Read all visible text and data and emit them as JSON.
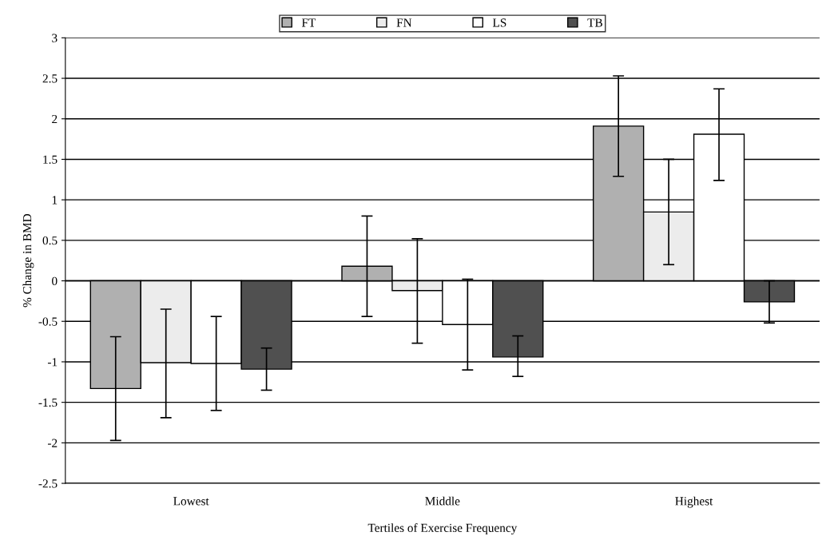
{
  "chart_data": {
    "type": "bar",
    "xlabel": "Tertiles of Exercise Frequency",
    "ylabel": "% Change in BMD",
    "categories": [
      "Lowest",
      "Middle",
      "Highest"
    ],
    "series": [
      {
        "name": "FT",
        "color": "#b0b0b0",
        "values": [
          -1.33,
          0.18,
          1.91
        ],
        "errors": [
          [
            -1.97,
            -0.69
          ],
          [
            -0.44,
            0.8
          ],
          [
            1.29,
            2.53
          ]
        ]
      },
      {
        "name": "FN",
        "color": "#ececec",
        "values": [
          -1.01,
          -0.12,
          0.85
        ],
        "errors": [
          [
            -1.69,
            -0.35
          ],
          [
            -0.77,
            0.52
          ],
          [
            0.2,
            1.5
          ]
        ]
      },
      {
        "name": "LS",
        "color": "#ffffff",
        "values": [
          -1.02,
          -0.54,
          1.81
        ],
        "errors": [
          [
            -1.6,
            -0.44
          ],
          [
            -1.1,
            0.02
          ],
          [
            1.24,
            2.37
          ]
        ]
      },
      {
        "name": "TB",
        "color": "#505050",
        "values": [
          -1.09,
          -0.94,
          -0.26
        ],
        "errors": [
          [
            -1.35,
            -0.83
          ],
          [
            -1.18,
            -0.68
          ],
          [
            -0.52,
            0.0
          ]
        ]
      }
    ],
    "ylim": [
      -2.5,
      3
    ],
    "yticks": [
      -2.5,
      -2,
      -1.5,
      -1,
      -0.5,
      0,
      0.5,
      1,
      1.5,
      2,
      2.5,
      3
    ],
    "grid": "y",
    "legend": "top"
  }
}
